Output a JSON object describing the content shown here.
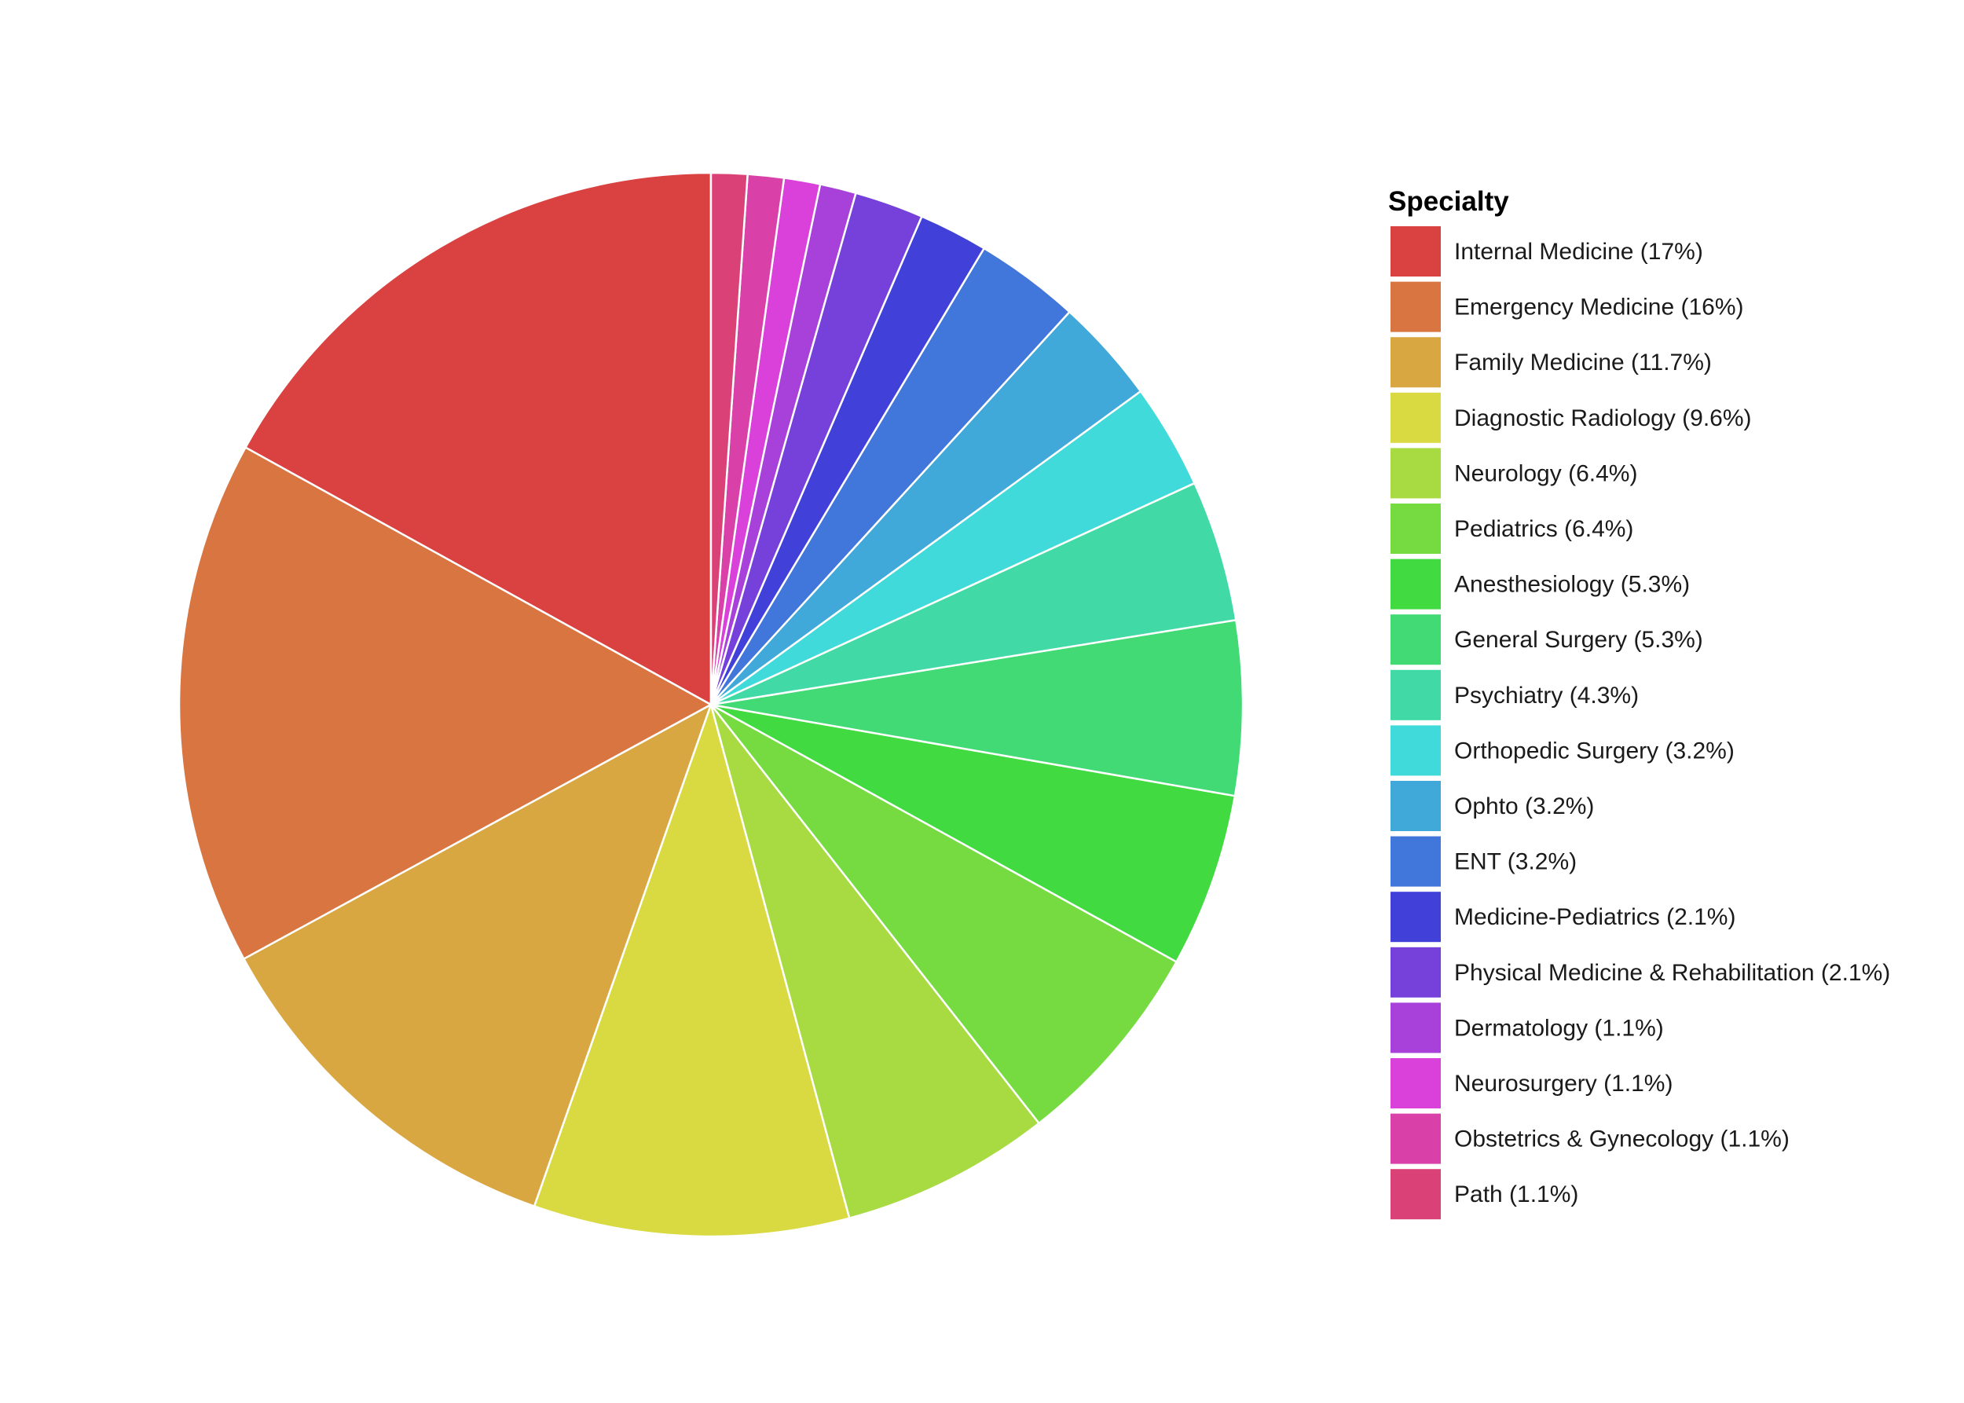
{
  "chart_data": {
    "type": "pie",
    "legend_title": "Specialty",
    "legend_position": "right",
    "slice_order": "clockwise-from-top",
    "slices": [
      {
        "label": "Internal Medicine (17%)",
        "value": 17.0,
        "color": "#DA4141"
      },
      {
        "label": "Emergency Medicine (16%)",
        "value": 16.0,
        "color": "#D87541"
      },
      {
        "label": "Family Medicine (11.7%)",
        "value": 11.7,
        "color": "#D9A741"
      },
      {
        "label": "Diagnostic Radiology (9.6%)",
        "value": 9.6,
        "color": "#D9DA41"
      },
      {
        "label": "Neurology (6.4%)",
        "value": 6.4,
        "color": "#A8DA41"
      },
      {
        "label": "Pediatrics (6.4%)",
        "value": 6.4,
        "color": "#76DA41"
      },
      {
        "label": "Anesthesiology (5.3%)",
        "value": 5.3,
        "color": "#41DA41"
      },
      {
        "label": "General Surgery (5.3%)",
        "value": 5.3,
        "color": "#41DA75"
      },
      {
        "label": "Psychiatry (4.3%)",
        "value": 4.3,
        "color": "#41DAA7"
      },
      {
        "label": "Orthopedic Surgery (3.2%)",
        "value": 3.2,
        "color": "#41DADA"
      },
      {
        "label": "Ophto (3.2%)",
        "value": 3.2,
        "color": "#41A8DA"
      },
      {
        "label": "ENT (3.2%)",
        "value": 3.2,
        "color": "#4176DA"
      },
      {
        "label": "Medicine-Pediatrics (2.1%)",
        "value": 2.1,
        "color": "#4141DA"
      },
      {
        "label": "Physical Medicine & Rehabilitation (2.1%)",
        "value": 2.1,
        "color": "#7541DA"
      },
      {
        "label": "Dermatology (1.1%)",
        "value": 1.1,
        "color": "#A741DA"
      },
      {
        "label": "Neurosurgery (1.1%)",
        "value": 1.1,
        "color": "#DA41DA"
      },
      {
        "label": "Obstetrics & Gynecology (1.1%)",
        "value": 1.1,
        "color": "#DA41A8"
      },
      {
        "label": "Path (1.1%)",
        "value": 1.1,
        "color": "#DA4176"
      }
    ]
  }
}
